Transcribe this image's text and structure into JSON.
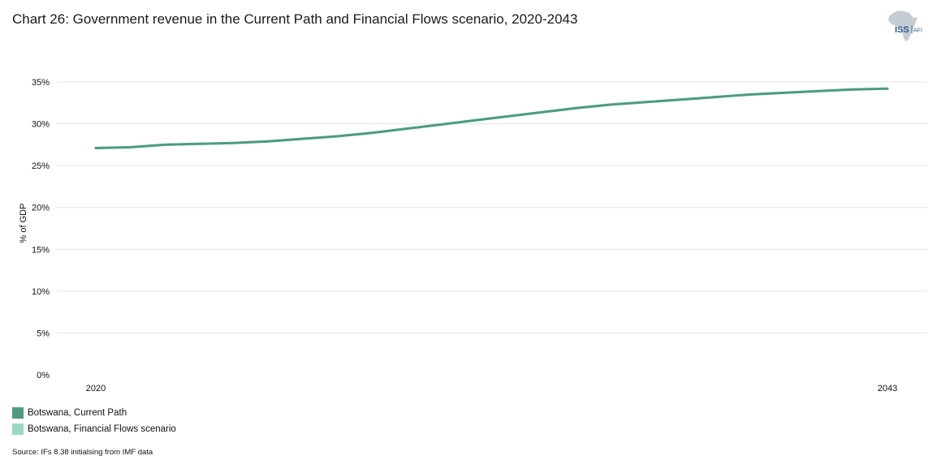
{
  "header": {
    "title": "Chart 26: Government revenue in the Current Path and Financial Flows scenario, 2020-2043"
  },
  "logo": {
    "text_main": "ISS",
    "text_sub": "AFI"
  },
  "chart_data": {
    "type": "line",
    "title": "Chart 26: Government revenue in the Current Path and Financial Flows scenario, 2020-2043",
    "ylabel": "% of GDP",
    "xlabel": "",
    "ylim": [
      0,
      35
    ],
    "y_ticks": [
      0,
      5,
      10,
      15,
      20,
      25,
      30,
      35
    ],
    "y_tick_labels": [
      "0%",
      "5%",
      "10%",
      "15%",
      "20%",
      "25%",
      "30%",
      "35%"
    ],
    "x_tick_labels": [
      "2020",
      "2043"
    ],
    "xlim": [
      2020,
      2043
    ],
    "grid": true,
    "legend_position": "bottom-left",
    "x": [
      2020,
      2021,
      2022,
      2023,
      2024,
      2025,
      2026,
      2027,
      2028,
      2029,
      2030,
      2031,
      2032,
      2033,
      2034,
      2035,
      2036,
      2037,
      2038,
      2039,
      2040,
      2041,
      2042,
      2043
    ],
    "series": [
      {
        "name": "Botswana, Financial Flows scenario",
        "color": "#9dd9c0",
        "values": [
          27.1,
          27.2,
          27.5,
          27.6,
          27.7,
          27.9,
          28.2,
          28.5,
          28.9,
          29.4,
          29.9,
          30.4,
          30.9,
          31.4,
          31.9,
          32.3,
          32.6,
          32.9,
          33.2,
          33.5,
          33.7,
          33.9,
          34.1,
          34.2
        ]
      },
      {
        "name": "Botswana, Current Path",
        "color": "#4e9c7e",
        "values": [
          27.1,
          27.2,
          27.5,
          27.6,
          27.7,
          27.9,
          28.2,
          28.5,
          28.9,
          29.4,
          29.9,
          30.4,
          30.9,
          31.4,
          31.9,
          32.3,
          32.6,
          32.9,
          33.2,
          33.5,
          33.7,
          33.9,
          34.1,
          34.2
        ]
      }
    ]
  },
  "legend": {
    "items": [
      {
        "label": "Botswana, Current Path",
        "color": "#4e9c7e"
      },
      {
        "label": "Botswana, Financial Flows scenario",
        "color": "#9dd9c0"
      }
    ]
  },
  "footer": {
    "source": "Source: IFs 8.38 initialsing from IMF data"
  }
}
